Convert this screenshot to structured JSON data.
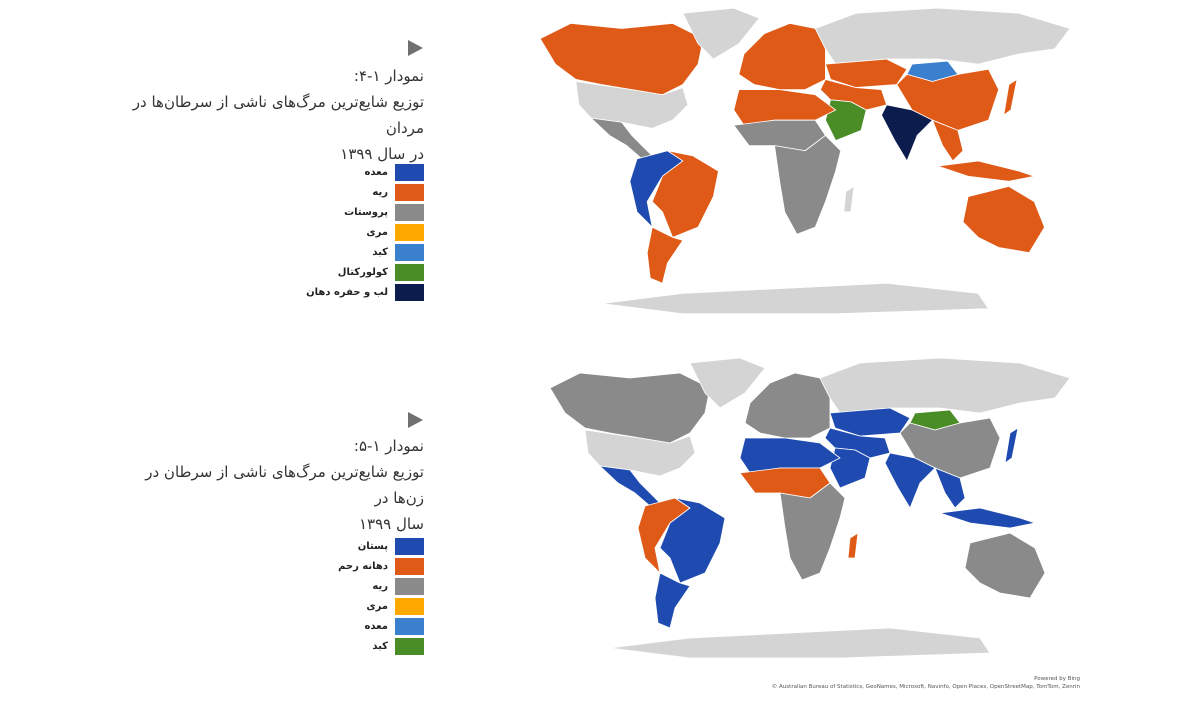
{
  "figures": [
    {
      "number": "نمودار ۱-۴:",
      "title_line1": "توزیع شایع‌ترین مرگ‌های ناشی از سرطان‌ها در مردان",
      "title_line2": "در سال ۱۳۹۹",
      "legend": [
        {
          "label": "معده",
          "color": "#1f4bb0"
        },
        {
          "label": "ریه",
          "color": "#e05a17"
        },
        {
          "label": "پروستات",
          "color": "#8a8a8a"
        },
        {
          "label": "مری",
          "color": "#ffa800"
        },
        {
          "label": "کبد",
          "color": "#3a80cf"
        },
        {
          "label": "کولورکتال",
          "color": "#4a8c25"
        },
        {
          "label": "لب و حفره دهان",
          "color": "#0b1c4d"
        }
      ],
      "map_regions": {
        "canada": "ریه",
        "greenland": "none",
        "usa": "none",
        "mexico": "پروستات",
        "andes": "معده",
        "brazil": "ریه",
        "southern_cone": "ریه",
        "europe": "ریه",
        "russia": "none",
        "central_asia": "ریه",
        "mongolia": "کبد",
        "china": "ریه",
        "japan": "ریه",
        "middle_east": "ریه",
        "arabia": "کولورکتال",
        "india": "لب و حفره دهان",
        "se_asia": "ریه",
        "indonesia": "ریه",
        "australia": "ریه",
        "north_africa": "ریه",
        "west_africa": "پروستات",
        "east_africa": "پروستات",
        "madagascar": "none",
        "antarctica": "none"
      }
    },
    {
      "number": "نمودار ۱-۵:",
      "title_line1": "توزیع شایع‌ترین مرگ‌های ناشی از سرطان در زن‌ها در",
      "title_line2": "سال ۱۳۹۹",
      "legend": [
        {
          "label": "پستان",
          "color": "#1f4bb0"
        },
        {
          "label": "دهانه رحم",
          "color": "#e05a17"
        },
        {
          "label": "ریه",
          "color": "#8a8a8a"
        },
        {
          "label": "مری",
          "color": "#ffa800"
        },
        {
          "label": "معده",
          "color": "#3a80cf"
        },
        {
          "label": "کبد",
          "color": "#4a8c25"
        }
      ],
      "map_regions": {
        "canada": "ریه",
        "greenland": "none",
        "usa": "none",
        "mexico": "پستان",
        "andes": "دهانه رحم",
        "brazil": "پستان",
        "southern_cone": "پستان",
        "europe": "ریه",
        "russia": "none",
        "central_asia": "پستان",
        "mongolia": "کبد",
        "china": "ریه",
        "japan": "پستان",
        "middle_east": "پستان",
        "arabia": "پستان",
        "india": "پستان",
        "se_asia": "پستان",
        "indonesia": "پستان",
        "australia": "ریه",
        "north_africa": "پستان",
        "west_africa": "دهانه رحم",
        "east_africa": "ریه",
        "madagascar": "دهانه رحم",
        "antarctica": "none"
      }
    }
  ],
  "no_data_color": "#d4d4d4",
  "attribution": {
    "powered": "Powered by Bing",
    "credits": "© Australian Bureau of Statistics, GeoNames, Microsoft, Navinfo, Open Places, OpenStreetMap, TomTom, Zenrin"
  }
}
